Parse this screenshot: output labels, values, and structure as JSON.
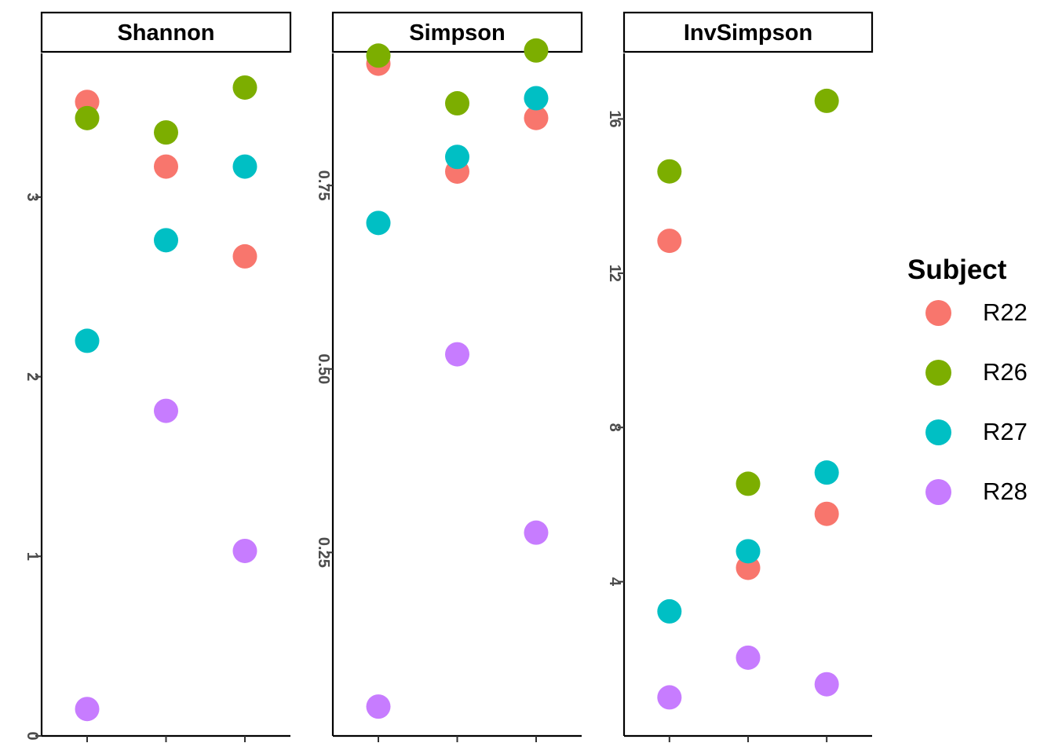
{
  "chart_data": {
    "type": "scatter",
    "legend": {
      "title": "Subject",
      "position": "right",
      "entries": [
        {
          "name": "R22",
          "color": "#F8766D"
        },
        {
          "name": "R26",
          "color": "#7CAE00"
        },
        {
          "name": "R27",
          "color": "#00BFC4"
        },
        {
          "name": "R28",
          "color": "#C77CFF"
        }
      ]
    },
    "x_tick_labels": [
      "",
      "",
      ""
    ],
    "grid": false,
    "facets": [
      {
        "title": "Shannon",
        "ylim": [
          0,
          3.8
        ],
        "y_ticks": [
          0,
          1,
          2,
          3
        ],
        "y_tick_labels": [
          "0",
          "1",
          "2",
          "3"
        ],
        "series": [
          {
            "name": "R22",
            "values": [
              3.53,
              3.17,
              2.67
            ]
          },
          {
            "name": "R26",
            "values": [
              3.44,
              3.36,
              3.61
            ]
          },
          {
            "name": "R27",
            "values": [
              2.2,
              2.76,
              3.17
            ]
          },
          {
            "name": "R28",
            "values": [
              0.15,
              1.81,
              1.03
            ]
          }
        ]
      },
      {
        "title": "Simpson",
        "ylim": [
          0.0,
          0.93
        ],
        "y_ticks": [
          0.25,
          0.5,
          0.75
        ],
        "y_tick_labels": [
          "0.25",
          "0.50",
          "0.75"
        ],
        "series": [
          {
            "name": "R22",
            "values": [
              0.916,
              0.769,
              0.842
            ]
          },
          {
            "name": "R26",
            "values": [
              0.927,
              0.862,
              0.934
            ]
          },
          {
            "name": "R27",
            "values": [
              0.699,
              0.789,
              0.869
            ]
          },
          {
            "name": "R28",
            "values": [
              0.04,
              0.52,
              0.277
            ]
          }
        ]
      },
      {
        "title": "InvSimpson",
        "ylim": [
          0,
          17.7
        ],
        "y_ticks": [
          4,
          8,
          12,
          16
        ],
        "y_tick_labels": [
          "4",
          "8",
          "12",
          "16"
        ],
        "series": [
          {
            "name": "R22",
            "values": [
              12.84,
              4.36,
              5.76
            ]
          },
          {
            "name": "R26",
            "values": [
              14.64,
              6.54,
              16.47
            ]
          },
          {
            "name": "R27",
            "values": [
              3.23,
              4.79,
              6.83
            ]
          },
          {
            "name": "R28",
            "values": [
              1.0,
              2.03,
              1.34
            ]
          }
        ]
      }
    ]
  }
}
